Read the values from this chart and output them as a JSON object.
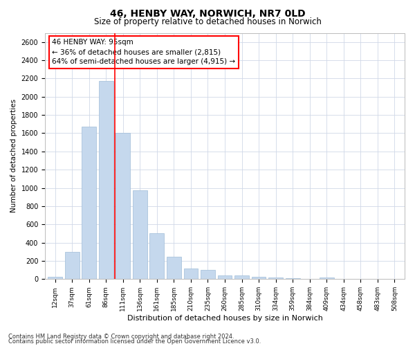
{
  "title": "46, HENBY WAY, NORWICH, NR7 0LD",
  "subtitle": "Size of property relative to detached houses in Norwich",
  "xlabel": "Distribution of detached houses by size in Norwich",
  "ylabel": "Number of detached properties",
  "bar_color": "#c5d8ed",
  "bar_edge_color": "#a0bdd8",
  "categories": [
    "12sqm",
    "37sqm",
    "61sqm",
    "86sqm",
    "111sqm",
    "136sqm",
    "161sqm",
    "185sqm",
    "210sqm",
    "235sqm",
    "260sqm",
    "285sqm",
    "310sqm",
    "334sqm",
    "359sqm",
    "384sqm",
    "409sqm",
    "434sqm",
    "458sqm",
    "483sqm",
    "508sqm"
  ],
  "values": [
    25,
    300,
    1675,
    2175,
    1600,
    975,
    500,
    245,
    120,
    100,
    40,
    40,
    25,
    20,
    10,
    5,
    20,
    5,
    5,
    5,
    5
  ],
  "red_line_x": 3.5,
  "annotation_text": "46 HENBY WAY: 95sqm\n← 36% of detached houses are smaller (2,815)\n64% of semi-detached houses are larger (4,915) →",
  "ylim": [
    0,
    2700
  ],
  "yticks": [
    0,
    200,
    400,
    600,
    800,
    1000,
    1200,
    1400,
    1600,
    1800,
    2000,
    2200,
    2400,
    2600
  ],
  "footnote1": "Contains HM Land Registry data © Crown copyright and database right 2024.",
  "footnote2": "Contains public sector information licensed under the Open Government Licence v3.0.",
  "background_color": "#ffffff",
  "grid_color": "#d0d8e8"
}
